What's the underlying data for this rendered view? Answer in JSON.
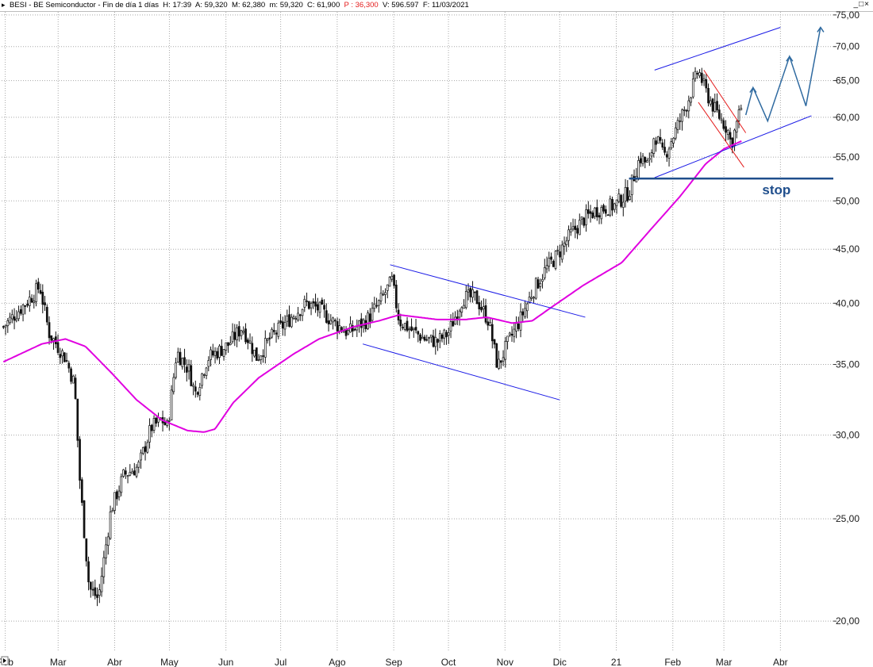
{
  "header": {
    "symbol": "BESI - BE Semiconductor",
    "period": "Fin de día 1 días",
    "h_label": "H:",
    "h_value": "17:39",
    "a_label": "A:",
    "a_value": "59,320",
    "m_label": "M:",
    "m_value": "62,380",
    "low_label": "m:",
    "low_value": "59,320",
    "c_label": "C:",
    "c_value": "61,900",
    "p_label": "P :",
    "p_value": "36,300",
    "v_label": "V:",
    "v_value": "596.597",
    "f_label": "F:",
    "f_value": "11/03/2021",
    "window_controls": "_□×"
  },
  "colors": {
    "price": "#111111",
    "moving_average": "#e000e0",
    "channel": "#1a1ae6",
    "bear_flag": "#e31a1a",
    "stop_line": "#1f4e8c",
    "projection": "#2f6aa0",
    "grid": "#a8a8a8"
  },
  "chart_data": {
    "type": "candlestick",
    "scale": "log",
    "ylim": [
      18.7,
      75.5
    ],
    "y_ticks": [
      20,
      25,
      30,
      35,
      40,
      45,
      50,
      55,
      60,
      65,
      70,
      75
    ],
    "y_tick_labels": [
      "20,00",
      "25,00",
      "30,00",
      "35,00",
      "40,00",
      "45,00",
      "50,00",
      "55,00",
      "60,00",
      "65,00",
      "70,00",
      "75,00"
    ],
    "x_tick_labels": [
      "Feb",
      "Mar",
      "Abr",
      "May",
      "Jun",
      "Jul",
      "Ago",
      "Sep",
      "Oct",
      "Nov",
      "Dic",
      "21",
      "Feb",
      "Mar",
      "Abr"
    ],
    "price_keypoints": [
      [
        "2020-01-31",
        38.0
      ],
      [
        "2020-02-15",
        40.5
      ],
      [
        "2020-02-20",
        41.5
      ],
      [
        "2020-02-25",
        37.5
      ],
      [
        "2020-03-05",
        35.5
      ],
      [
        "2020-03-10",
        33.5
      ],
      [
        "2020-03-13",
        27.0
      ],
      [
        "2020-03-18",
        21.5
      ],
      [
        "2020-03-23",
        21.0
      ],
      [
        "2020-03-30",
        25.5
      ],
      [
        "2020-04-06",
        27.5
      ],
      [
        "2020-04-14",
        28.0
      ],
      [
        "2020-04-21",
        30.5
      ],
      [
        "2020-04-27",
        31.0
      ],
      [
        "2020-04-30",
        30.5
      ],
      [
        "2020-05-05",
        36.0
      ],
      [
        "2020-05-12",
        34.5
      ],
      [
        "2020-05-15",
        32.8
      ],
      [
        "2020-05-22",
        35.5
      ],
      [
        "2020-06-02",
        36.5
      ],
      [
        "2020-06-10",
        38.0
      ],
      [
        "2020-06-18",
        35.5
      ],
      [
        "2020-06-25",
        37.0
      ],
      [
        "2020-07-08",
        39.0
      ],
      [
        "2020-07-15",
        40.0
      ],
      [
        "2020-07-22",
        39.5
      ],
      [
        "2020-07-29",
        38.5
      ],
      [
        "2020-08-07",
        37.5
      ],
      [
        "2020-08-17",
        38.5
      ],
      [
        "2020-08-24",
        40.0
      ],
      [
        "2020-08-31",
        42.0
      ],
      [
        "2020-09-04",
        38.5
      ],
      [
        "2020-09-10",
        37.8
      ],
      [
        "2020-09-18",
        37.0
      ],
      [
        "2020-09-25",
        36.8
      ],
      [
        "2020-10-01",
        37.5
      ],
      [
        "2020-10-09",
        40.5
      ],
      [
        "2020-10-16",
        40.5
      ],
      [
        "2020-10-23",
        38.5
      ],
      [
        "2020-10-28",
        34.8
      ],
      [
        "2020-11-02",
        36.5
      ],
      [
        "2020-11-09",
        38.5
      ],
      [
        "2020-11-16",
        41.0
      ],
      [
        "2020-11-23",
        43.0
      ],
      [
        "2020-11-30",
        44.5
      ],
      [
        "2020-12-07",
        46.5
      ],
      [
        "2020-12-14",
        48.0
      ],
      [
        "2020-12-21",
        49.0
      ],
      [
        "2020-12-31",
        49.5
      ],
      [
        "2021-01-08",
        51.0
      ],
      [
        "2021-01-14",
        55.0
      ],
      [
        "2021-01-19",
        54.0
      ],
      [
        "2021-01-22",
        58.0
      ],
      [
        "2021-01-27",
        55.0
      ],
      [
        "2021-02-02",
        58.0
      ],
      [
        "2021-02-09",
        62.0
      ],
      [
        "2021-02-15",
        66.5
      ],
      [
        "2021-02-19",
        63.5
      ],
      [
        "2021-02-24",
        61.0
      ],
      [
        "2021-03-03",
        58.5
      ],
      [
        "2021-03-05",
        56.5
      ],
      [
        "2021-03-11",
        61.9
      ]
    ],
    "moving_average_keypoints": [
      [
        "2020-01-31",
        35.2
      ],
      [
        "2020-02-21",
        36.6
      ],
      [
        "2020-03-05",
        37.0
      ],
      [
        "2020-03-16",
        36.4
      ],
      [
        "2020-03-30",
        34.4
      ],
      [
        "2020-04-13",
        32.4
      ],
      [
        "2020-04-27",
        31.0
      ],
      [
        "2020-05-11",
        30.3
      ],
      [
        "2020-05-20",
        30.2
      ],
      [
        "2020-05-26",
        30.4
      ],
      [
        "2020-06-05",
        32.2
      ],
      [
        "2020-06-19",
        34.0
      ],
      [
        "2020-07-08",
        35.8
      ],
      [
        "2020-07-22",
        37.0
      ],
      [
        "2020-08-10",
        38.0
      ],
      [
        "2020-08-24",
        38.5
      ],
      [
        "2020-09-04",
        39.0
      ],
      [
        "2020-09-25",
        38.6
      ],
      [
        "2020-10-10",
        38.6
      ],
      [
        "2020-10-22",
        38.8
      ],
      [
        "2020-11-05",
        38.3
      ],
      [
        "2020-11-16",
        38.5
      ],
      [
        "2020-11-26",
        39.6
      ],
      [
        "2020-12-14",
        41.6
      ],
      [
        "2021-01-04",
        43.7
      ],
      [
        "2021-01-20",
        47.0
      ],
      [
        "2021-02-05",
        50.5
      ],
      [
        "2021-02-19",
        54.2
      ],
      [
        "2021-03-01",
        56.0
      ],
      [
        "2021-03-11",
        57.0
      ]
    ],
    "annotations": {
      "stop": {
        "label": "stop",
        "value": 52.5,
        "from": "2021-01-08",
        "to": "2021-04-30"
      },
      "upper_channel": [
        [
          "2021-01-22",
          66.5
        ],
        [
          "2021-04-01",
          73.0
        ]
      ],
      "lower_channel": [
        [
          "2021-01-22",
          52.6
        ],
        [
          "2021-04-18",
          60.2
        ]
      ],
      "bear_flag_upper": [
        [
          "2021-02-18",
          66.5
        ],
        [
          "2021-03-13",
          58.0
        ]
      ],
      "bear_flag_lower": [
        [
          "2021-02-15",
          62.0
        ],
        [
          "2021-03-12",
          53.8
        ]
      ],
      "mid_2020_upper": [
        [
          "2020-08-30",
          43.5
        ],
        [
          "2020-12-15",
          38.8
        ]
      ],
      "mid_2020_lower": [
        [
          "2020-08-15",
          36.6
        ],
        [
          "2020-12-01",
          32.4
        ]
      ],
      "projection": [
        [
          "2021-03-13",
          60.3
        ],
        [
          "2021-03-17",
          64.0
        ],
        [
          "2021-03-25",
          59.5
        ],
        [
          "2021-04-06",
          68.5
        ],
        [
          "2021-04-15",
          61.5
        ],
        [
          "2021-04-23",
          73.0
        ]
      ]
    }
  }
}
